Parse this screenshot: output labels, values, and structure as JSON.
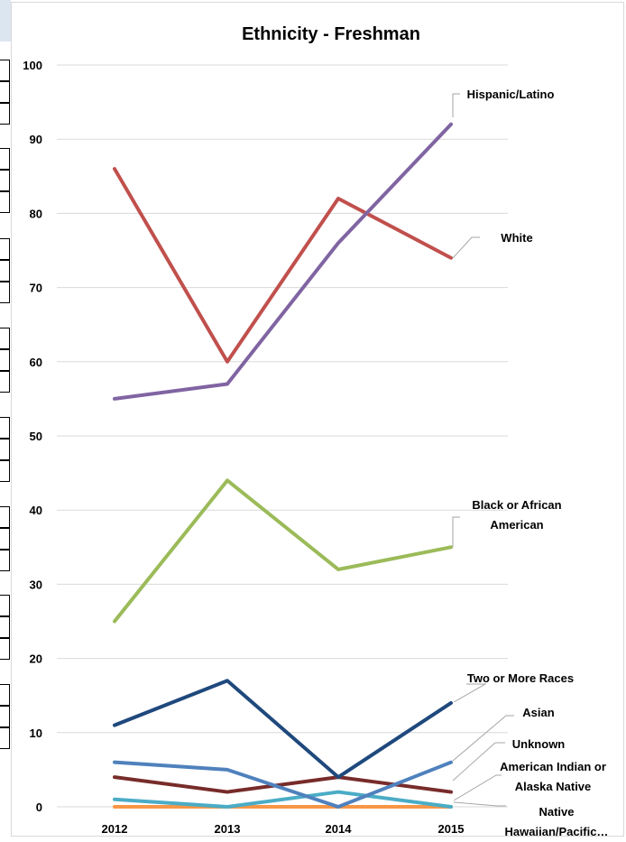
{
  "chart_data": {
    "type": "line",
    "title": "Ethnicity - Freshman",
    "xlabel": "",
    "ylabel": "",
    "categories": [
      "2012",
      "2013",
      "2014",
      "2015"
    ],
    "ylim": [
      0,
      100
    ],
    "yticks": [
      0,
      10,
      20,
      30,
      40,
      50,
      60,
      70,
      80,
      90,
      100
    ],
    "grid": true,
    "legend": "data labels at right of last point",
    "series": [
      {
        "name": "Hispanic/Latino",
        "color": "#8064a2",
        "values": [
          55,
          57,
          76,
          92
        ]
      },
      {
        "name": "White",
        "color": "#c0504d",
        "values": [
          86,
          60,
          82,
          74
        ]
      },
      {
        "name": "Black or African American",
        "color": "#9bbb59",
        "values": [
          25,
          44,
          32,
          35
        ]
      },
      {
        "name": "Two or More Races",
        "color": "#1f497d",
        "values": [
          11,
          17,
          4,
          14
        ]
      },
      {
        "name": "Asian",
        "color": "#4f81bd",
        "values": [
          6,
          5,
          0,
          6
        ]
      },
      {
        "name": "Unknown",
        "color": "#772c2a",
        "values": [
          4,
          2,
          4,
          2
        ]
      },
      {
        "name": "American Indian or Alaska Native",
        "color": "#4bacc6",
        "values": [
          1,
          0,
          2,
          0
        ]
      },
      {
        "name": "Native Hawaiian/Pacific…",
        "color": "#f79646",
        "values": [
          0,
          0,
          0,
          0
        ]
      }
    ]
  }
}
